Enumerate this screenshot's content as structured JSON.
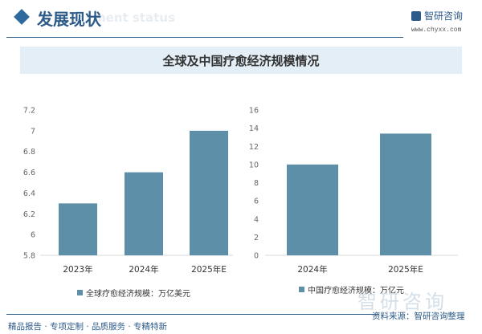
{
  "header": {
    "title": "发展现状",
    "subtitle": "ment status",
    "logo": "智研咨询",
    "url": "www.chyxx.com"
  },
  "banner": "全球及中国疗愈经济规模情况",
  "chart_data": [
    {
      "type": "bar",
      "title": "",
      "categories": [
        "2023年",
        "2024年",
        "2025年E"
      ],
      "values": [
        6.3,
        6.6,
        7.0
      ],
      "ylim": [
        5.8,
        7.2
      ],
      "yticks": [
        "5.8",
        "6",
        "6.2",
        "6.4",
        "6.6",
        "6.8",
        "7",
        "7.2"
      ],
      "legend": "全球疗愈经济规模：万亿美元",
      "color": "#5d8fa8",
      "grid": false,
      "legend_position": "bottom"
    },
    {
      "type": "bar",
      "title": "",
      "categories": [
        "2024年",
        "2025年E"
      ],
      "values": [
        10,
        13.4
      ],
      "ylim": [
        0,
        16
      ],
      "yticks": [
        "0",
        "2",
        "4",
        "6",
        "8",
        "10",
        "12",
        "14",
        "16"
      ],
      "legend": "中国疗愈经济规模：万亿元",
      "color": "#5d8fa8",
      "grid": false,
      "legend_position": "bottom"
    }
  ],
  "footer": {
    "slogan": "精品报告 · 专项定制 · 品质服务 · 专精特新",
    "source": "资料来源：智研咨询整理",
    "watermark": "智研咨询"
  }
}
